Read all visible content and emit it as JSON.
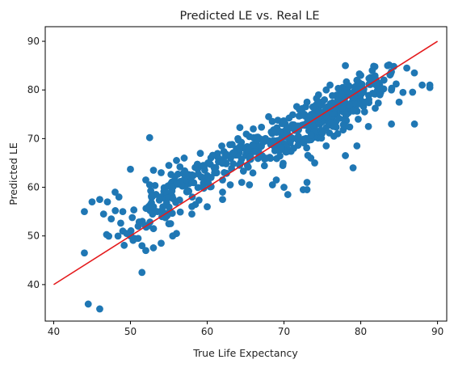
{
  "chart_data": {
    "type": "scatter",
    "title": "Predicted LE vs. Real LE",
    "xlabel": "True Life Expectancy",
    "ylabel": "Predicted LE",
    "xlim": [
      38.9,
      91.2
    ],
    "ylim": [
      32.5,
      93.0
    ],
    "xticks": [
      40,
      50,
      60,
      70,
      80,
      90
    ],
    "yticks": [
      40,
      50,
      60,
      70,
      80,
      90
    ],
    "grid": false,
    "point_color": "#1f77b4",
    "line_color": "#e41a1c",
    "reference_line": {
      "x": [
        40,
        90
      ],
      "y": [
        40,
        90
      ]
    },
    "clusters": [
      {
        "cx": 74.5,
        "cy": 73.5,
        "sx": 4.5,
        "sy": 4.0,
        "n": 240
      },
      {
        "cx": 79.0,
        "cy": 79.0,
        "sx": 3.0,
        "sy": 2.8,
        "n": 70
      },
      {
        "cx": 66.0,
        "cy": 68.0,
        "sx": 4.0,
        "sy": 3.2,
        "n": 90
      },
      {
        "cx": 58.0,
        "cy": 62.0,
        "sx": 3.5,
        "sy": 3.0,
        "n": 70
      },
      {
        "cx": 55.0,
        "cy": 57.0,
        "sx": 3.5,
        "sy": 3.5,
        "n": 60
      }
    ],
    "points": [
      [
        44,
        55
      ],
      [
        45,
        57
      ],
      [
        46,
        57.5
      ],
      [
        47,
        57
      ],
      [
        48,
        59
      ],
      [
        48.5,
        58
      ],
      [
        46.5,
        54.5
      ],
      [
        47.5,
        53.5
      ],
      [
        49,
        55
      ],
      [
        49,
        51
      ],
      [
        49.5,
        50.5
      ],
      [
        50,
        50
      ],
      [
        50.5,
        49.5
      ],
      [
        51,
        49.5
      ],
      [
        51.5,
        48
      ],
      [
        52,
        47
      ],
      [
        51.5,
        42.5
      ],
      [
        44,
        46.5
      ],
      [
        44.5,
        36
      ],
      [
        46,
        35
      ],
      [
        52.5,
        60.5
      ],
      [
        53,
        63.5
      ],
      [
        52.5,
        70.2
      ],
      [
        51,
        52
      ],
      [
        53,
        51.5
      ],
      [
        54,
        48.5
      ],
      [
        55,
        52.5
      ],
      [
        56,
        50.5
      ],
      [
        55.5,
        50
      ],
      [
        58,
        54.5
      ],
      [
        60,
        56
      ],
      [
        62,
        59
      ],
      [
        62,
        57.5
      ],
      [
        63,
        60.5
      ],
      [
        64.5,
        61
      ],
      [
        65.5,
        60.5
      ],
      [
        68.5,
        60.5
      ],
      [
        69,
        61.5
      ],
      [
        70,
        60
      ],
      [
        70.5,
        58.5
      ],
      [
        73,
        61
      ],
      [
        73,
        59.5
      ],
      [
        72.5,
        59.5
      ],
      [
        78,
        66.5
      ],
      [
        79,
        64
      ],
      [
        79.5,
        68.5
      ],
      [
        81,
        72.5
      ],
      [
        84,
        73
      ],
      [
        85,
        77.5
      ],
      [
        85.5,
        79.5
      ],
      [
        86,
        84.5
      ],
      [
        87,
        73
      ],
      [
        88,
        81
      ],
      [
        89,
        80.5
      ],
      [
        89,
        81
      ],
      [
        83.5,
        85
      ],
      [
        78,
        85
      ],
      [
        81.5,
        84
      ],
      [
        82,
        81
      ],
      [
        80,
        83
      ],
      [
        79.5,
        82
      ],
      [
        75.5,
        80
      ],
      [
        76,
        81
      ],
      [
        77,
        78
      ],
      [
        77.5,
        79
      ],
      [
        73.5,
        66
      ],
      [
        74,
        65
      ],
      [
        75.5,
        68.5
      ],
      [
        76.5,
        70.5
      ],
      [
        62,
        61.5
      ],
      [
        61,
        63.5
      ],
      [
        59.5,
        64.5
      ],
      [
        60.5,
        62
      ],
      [
        57,
        66
      ],
      [
        56,
        65.5
      ],
      [
        55,
        64.5
      ],
      [
        54,
        63
      ],
      [
        52,
        61.5
      ],
      [
        53,
        56
      ],
      [
        53.5,
        55
      ],
      [
        50,
        63.7
      ],
      [
        64,
        70
      ],
      [
        66,
        72
      ],
      [
        68,
        74.5
      ],
      [
        70,
        73.5
      ],
      [
        72,
        76
      ],
      [
        73,
        77.5
      ],
      [
        74.5,
        79
      ],
      [
        76,
        76.5
      ],
      [
        82.5,
        79
      ],
      [
        84,
        80
      ],
      [
        83,
        82
      ],
      [
        80.5,
        75.5
      ],
      [
        78,
        72.5
      ],
      [
        77,
        71
      ]
    ]
  }
}
